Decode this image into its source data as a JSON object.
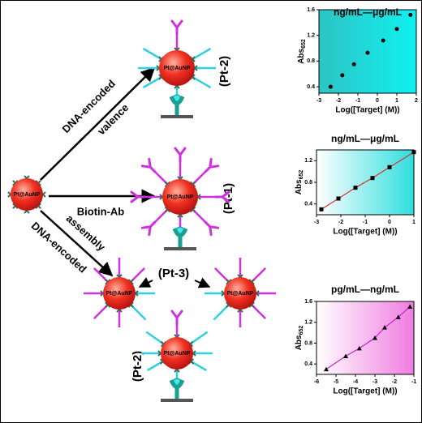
{
  "diagram": {
    "particle_label": "Pt@AuNP",
    "pt2_label": "(Pt-2)",
    "pt1_label": "(Pt-1)",
    "pt3_label": "(Pt-3)",
    "arrow_top_label_1": "DNA-encoded",
    "arrow_top_label_2": "valence",
    "arrow_mid_label": "Biotin-Ab",
    "arrow_bottom_label_1": "assembly",
    "arrow_bottom_label_2": "DNA-encoded"
  },
  "chart_data": [
    {
      "type": "scatter",
      "title": "ng/mL—μg/mL",
      "xlabel": "Log([Target] (M))",
      "ylabel": "Abs",
      "ylabel_sub": "652",
      "x": [
        -2.4,
        -1.8,
        -1.2,
        -0.5,
        0.3,
        1.0,
        1.7
      ],
      "values": [
        0.4,
        0.58,
        0.75,
        0.93,
        1.12,
        1.3,
        1.52
      ],
      "xlim": [
        -3,
        2
      ],
      "xticks": [
        -3,
        -2,
        -1,
        0,
        1,
        2
      ],
      "ylim": [
        0.3,
        1.6
      ],
      "yticks": [
        0.4,
        0.8,
        1.2,
        1.6
      ],
      "marker": "circle",
      "color": "#000000",
      "background": [
        "#2ec4c4",
        "#10f0f0"
      ]
    },
    {
      "type": "line",
      "title": "ng/mL—μg/mL",
      "xlabel": "Log([Target] (M))",
      "ylabel": "Abs",
      "ylabel_sub": "652",
      "x": [
        -2.8,
        -2.1,
        -1.4,
        -0.7,
        0,
        1
      ],
      "values": [
        0.3,
        0.5,
        0.7,
        0.88,
        1.08,
        1.36
      ],
      "xlim": [
        -3,
        1
      ],
      "xticks": [
        -3,
        -2,
        -1,
        0,
        1
      ],
      "ylim": [
        0.2,
        1.4
      ],
      "yticks": [
        0.4,
        0.8,
        1.2
      ],
      "marker": "square",
      "color": "#000000",
      "line_color": "#e03020",
      "background": [
        "#ffffff",
        "#30dede"
      ]
    },
    {
      "type": "line",
      "title": "pg/mL—ng/mL",
      "xlabel": "Log([Target] (M))",
      "ylabel": "Abs",
      "ylabel_sub": "652",
      "x": [
        -5.5,
        -4.5,
        -3.8,
        -3.0,
        -2.5,
        -1.8,
        -1.2
      ],
      "values": [
        0.3,
        0.55,
        0.7,
        0.9,
        1.1,
        1.3,
        1.5
      ],
      "xlim": [
        -6,
        -1
      ],
      "xticks": [
        -6,
        -5,
        -4,
        -3,
        -2,
        -1
      ],
      "ylim": [
        0.2,
        1.6
      ],
      "yticks": [
        0.4,
        0.8,
        1.2,
        1.6
      ],
      "marker": "triangle",
      "color": "#000000",
      "line_color": "#cc20cc",
      "background": [
        "#ffffff",
        "#f07ce0"
      ]
    }
  ]
}
